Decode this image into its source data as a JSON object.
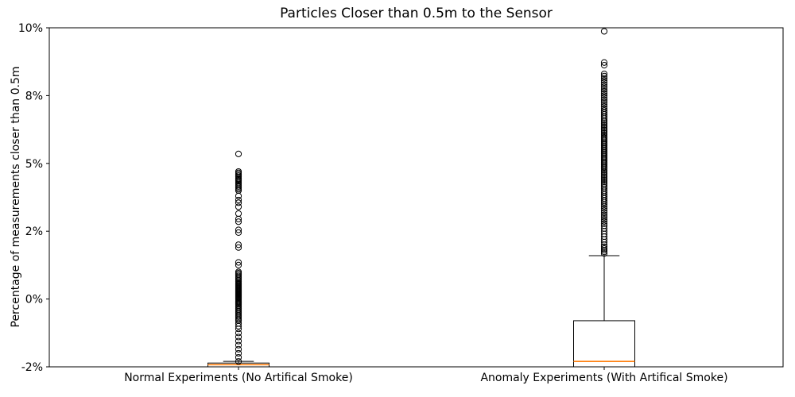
{
  "chart_data": {
    "type": "boxplot",
    "title": "Particles Closer than 0.5m to the Sensor",
    "ylabel": "Percentage of measurements closer than 0.5m",
    "unit": "%",
    "ylim": [
      -2.5,
      10
    ],
    "yticks": [
      {
        "value": -2.5,
        "label": "-2%"
      },
      {
        "value": 0,
        "label": "0%"
      },
      {
        "value": 2.5,
        "label": "2%"
      },
      {
        "value": 5,
        "label": "5%"
      },
      {
        "value": 7.5,
        "label": "8%"
      },
      {
        "value": 10,
        "label": "10%"
      }
    ],
    "grid": false,
    "colors": {
      "box": "#000000",
      "median": "#ff7f0e",
      "outlier": "#000000",
      "background": "#ffffff"
    },
    "groups": [
      {
        "id": "normal",
        "label": "Normal Experiments (No Artifical Smoke)",
        "stats": {
          "whisker_low": -2.5,
          "q1": -2.5,
          "median": -2.42,
          "q3": -2.36,
          "whisker_high": -2.3
        },
        "outliers": [
          5.35,
          4.7,
          4.65,
          4.6,
          4.55,
          4.5,
          4.45,
          4.42,
          4.38,
          4.35,
          4.3,
          4.25,
          4.2,
          4.15,
          4.1,
          4.05,
          4.0,
          3.8,
          3.65,
          3.55,
          3.4,
          3.15,
          2.95,
          2.85,
          2.55,
          2.45,
          2.0,
          1.9,
          1.35,
          1.25,
          1.0,
          0.95,
          0.9,
          0.85,
          0.8,
          0.75,
          0.7,
          0.65,
          0.6,
          0.57,
          0.54,
          0.51,
          0.48,
          0.45,
          0.42,
          0.39,
          0.36,
          0.33,
          0.3,
          0.27,
          0.24,
          0.21,
          0.18,
          0.15,
          0.12,
          0.09,
          0.06,
          0.03,
          0.0,
          -0.04,
          -0.08,
          -0.12,
          -0.16,
          -0.2,
          -0.25,
          -0.3,
          -0.35,
          -0.4,
          -0.45,
          -0.5,
          -0.55,
          -0.6,
          -0.65,
          -0.7,
          -0.75,
          -0.8,
          -0.9,
          -1.0,
          -1.1,
          -1.25,
          -1.4,
          -1.55,
          -1.7,
          -1.85,
          -2.0,
          -2.15,
          -2.3
        ]
      },
      {
        "id": "anomaly",
        "label": "Anomaly Experiments (With Artifical Smoke)",
        "stats": {
          "whisker_low": -2.5,
          "q1": -2.5,
          "median": -2.3,
          "q3": -0.8,
          "whisker_high": 1.6
        },
        "outliers": [
          9.87,
          8.72,
          8.62,
          8.3,
          8.22,
          8.14,
          8.06,
          7.98,
          7.9,
          7.82,
          7.74,
          7.66,
          7.58,
          7.5,
          7.42,
          7.34,
          7.26,
          7.18,
          7.1,
          7.02,
          6.95,
          6.88,
          6.81,
          6.74,
          6.67,
          6.6,
          6.54,
          6.48,
          6.42,
          6.36,
          6.3,
          6.24,
          6.18,
          6.12,
          6.06,
          6.0,
          5.95,
          5.9,
          5.85,
          5.8,
          5.75,
          5.7,
          5.65,
          5.6,
          5.55,
          5.5,
          5.45,
          5.4,
          5.35,
          5.3,
          5.25,
          5.2,
          5.15,
          5.1,
          5.05,
          5.0,
          4.95,
          4.9,
          4.85,
          4.8,
          4.74,
          4.68,
          4.62,
          4.56,
          4.5,
          4.44,
          4.38,
          4.32,
          4.26,
          4.2,
          4.13,
          4.06,
          3.99,
          3.92,
          3.85,
          3.78,
          3.71,
          3.64,
          3.57,
          3.5,
          3.42,
          3.34,
          3.26,
          3.18,
          3.1,
          3.02,
          2.94,
          2.86,
          2.78,
          2.7,
          2.6,
          2.5,
          2.4,
          2.3,
          2.2,
          2.1,
          2.0,
          1.93,
          1.86,
          1.8,
          1.74,
          1.68
        ]
      }
    ]
  }
}
